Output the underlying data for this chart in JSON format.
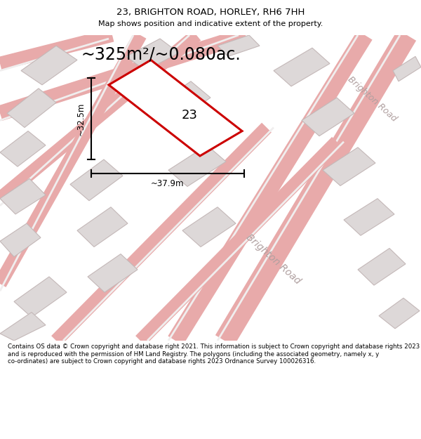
{
  "title": "23, BRIGHTON ROAD, HORLEY, RH6 7HH",
  "subtitle": "Map shows position and indicative extent of the property.",
  "area_text": "~325m²/~0.080ac.",
  "dim_width": "~37.9m",
  "dim_height": "~32.5m",
  "parcel_label": "23",
  "footer": "Contains OS data © Crown copyright and database right 2021. This information is subject to Crown copyright and database rights 2023 and is reproduced with the permission of HM Land Registry. The polygons (including the associated geometry, namely x, y co-ordinates) are subject to Crown copyright and database rights 2023 Ordnance Survey 100026316.",
  "map_bg": "#f0eeee",
  "road_color": "#e8aaaa",
  "building_face": "#ddd8d8",
  "building_edge": "#c4b8b8",
  "road_label": "Brighton Road",
  "parcel_fill": "#ffffff",
  "parcel_edge": "#cc0000"
}
